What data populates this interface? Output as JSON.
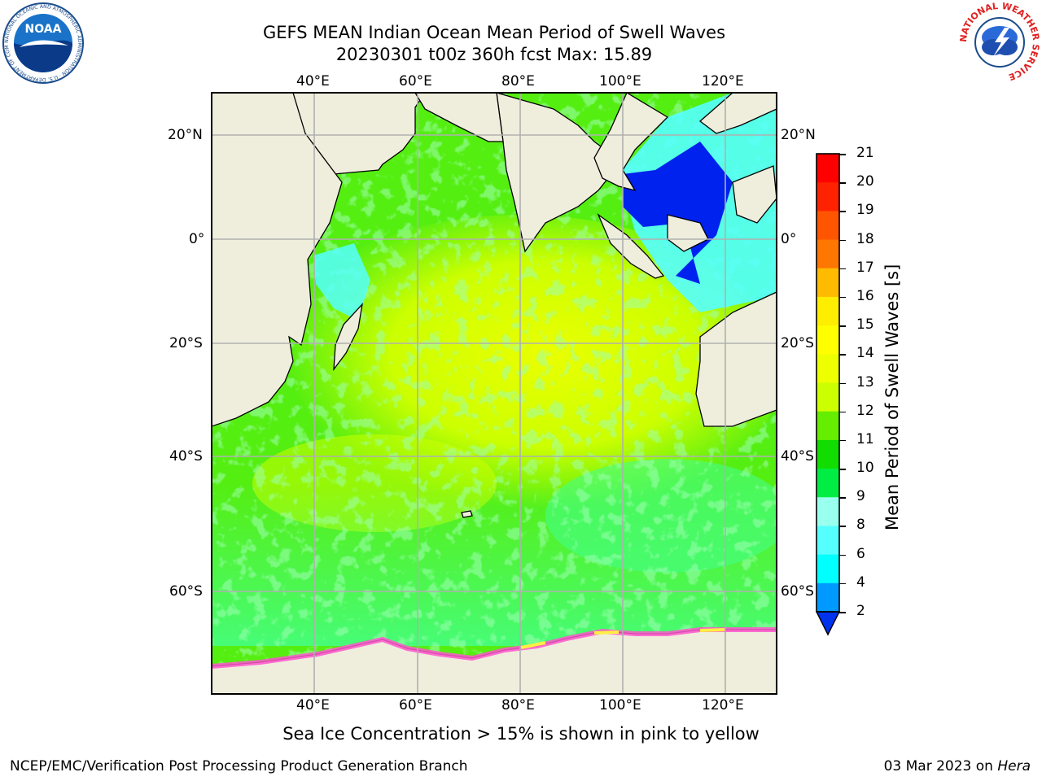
{
  "title": {
    "line1": "GEFS MEAN Indian Ocean Mean Period of Swell Waves",
    "line2": "20230301 t00z 360h fcst   Max: 15.89"
  },
  "map": {
    "lon_labels": [
      "40°E",
      "60°E",
      "80°E",
      "100°E",
      "120°E"
    ],
    "lat_labels_left": [
      "20°N",
      "0°",
      "20°S",
      "40°S",
      "60°S"
    ],
    "lat_labels_right": [
      "20°N",
      "0°",
      "20°S",
      "40°S",
      "60°S"
    ],
    "colors": {
      "land": "#efeedd",
      "ocean_main": "#55ee11",
      "ocean_warm": "#ccff00",
      "ocean_cool": "#44ff88",
      "ocean_low": "#55ffff",
      "ocean_min": "#0022ee",
      "ice": "#ff55cc",
      "gridline": "#b0b0b0"
    }
  },
  "colorbar": {
    "title": "Mean Period of Swell Waves [s]",
    "tick_labels": [
      "21",
      "20",
      "19",
      "18",
      "17",
      "16",
      "15",
      "14",
      "13",
      "12",
      "11",
      "10",
      "9",
      "8",
      "6",
      "4",
      "2"
    ],
    "colors": [
      "#ff0000",
      "#ff2200",
      "#ff5500",
      "#ff7700",
      "#ff9900",
      "#ffbb00",
      "#ffee00",
      "#ffff00",
      "#eeff00",
      "#ccff00",
      "#66ee00",
      "#11dd00",
      "#00ee44",
      "#44ff88",
      "#99ffee",
      "#55ffff",
      "#00ffff",
      "#0099ff",
      "#0033ee"
    ]
  },
  "ice_note": "Sea Ice Concentration > 15% is shown in pink to yellow",
  "footer": {
    "left": "NCEP/EMC/Verification Post Processing Product Generation Branch",
    "date": "03 Mar 2023 on ",
    "host": "Hera"
  },
  "logos": {
    "noaa": "NOAA",
    "noaa_ring": "NATIONAL OCEANIC AND ATMOSPHERIC ADMINISTRATION · U.S. DEPARTMENT OF COMMERCE",
    "nws_ring": "NATIONAL WEATHER SERVICE"
  }
}
